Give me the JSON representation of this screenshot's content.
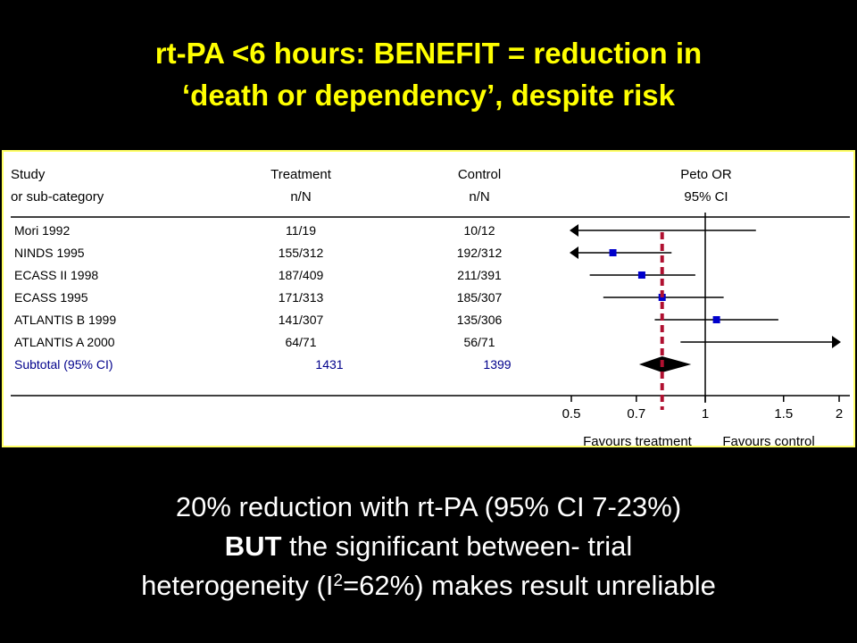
{
  "slide": {
    "title_line1": "rt-PA <6 hours: BENEFIT = reduction in",
    "title_line2": "‘death or dependency’, despite risk",
    "footer_line1": "20% reduction with rt-PA (95% CI 7-23%)",
    "footer_line2_bold": "BUT",
    "footer_line2_rest": " the significant between- trial",
    "footer_line3_pre": "heterogeneity (I",
    "footer_line3_sup": "2",
    "footer_line3_post": "=62%) makes result unreliable"
  },
  "chart_data": {
    "type": "forest",
    "headers": {
      "study_line1": "Study",
      "study_line2": "or sub-category",
      "treatment_line1": "Treatment",
      "treatment_line2": "n/N",
      "control_line1": "Control",
      "control_line2": "n/N",
      "or_line1": "Peto OR",
      "or_line2": "95% CI"
    },
    "xscale": "log",
    "xlim": [
      0.5,
      2
    ],
    "xticks": [
      0.5,
      0.7,
      1,
      1.5,
      2
    ],
    "xtick_labels": [
      "0.5",
      "0.7",
      "1",
      "1.5",
      "2"
    ],
    "reference_line": 1,
    "pooled_marker_line": 0.8,
    "studies": [
      {
        "name": "Mori 1992",
        "treatment": "11/19",
        "control": "10/12",
        "or": null,
        "ci_low": 0.5,
        "ci_high": 1.3,
        "ci_low_arrow": true,
        "ci_high_arrow": false
      },
      {
        "name": "NINDS 1995",
        "treatment": "155/312",
        "control": "192/312",
        "or": 0.62,
        "ci_low": 0.5,
        "ci_high": 0.84,
        "ci_low_arrow": true,
        "ci_high_arrow": false
      },
      {
        "name": "ECASS II 1998",
        "treatment": "187/409",
        "control": "211/391",
        "or": 0.72,
        "ci_low": 0.55,
        "ci_high": 0.95,
        "ci_low_arrow": false,
        "ci_high_arrow": false
      },
      {
        "name": "ECASS 1995",
        "treatment": "171/313",
        "control": "185/307",
        "or": 0.8,
        "ci_low": 0.59,
        "ci_high": 1.1,
        "ci_low_arrow": false,
        "ci_high_arrow": false
      },
      {
        "name": "ATLANTIS B 1999",
        "treatment": "141/307",
        "control": "135/306",
        "or": 1.06,
        "ci_low": 0.77,
        "ci_high": 1.46,
        "ci_low_arrow": false,
        "ci_high_arrow": false
      },
      {
        "name": "ATLANTIS A 2000",
        "treatment": "64/71",
        "control": "56/71",
        "or": null,
        "ci_low": 0.88,
        "ci_high": 2,
        "ci_low_arrow": false,
        "ci_high_arrow": true
      }
    ],
    "subtotal": {
      "name": "Subtotal (95% CI)",
      "treatment": "1431",
      "control": "1399",
      "or": 0.8,
      "ci_low": 0.71,
      "ci_high": 0.93
    },
    "favours_left": "Favours treatment",
    "favours_right": "Favours control"
  }
}
